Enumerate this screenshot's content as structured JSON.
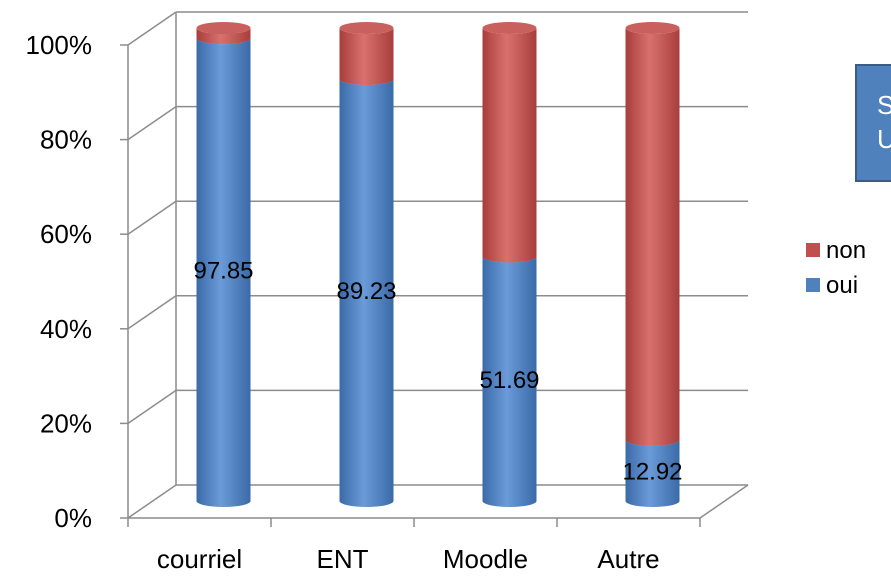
{
  "title_box": {
    "line1": "S",
    "line2": "U"
  },
  "colors": {
    "oui": "#4f81bd",
    "non": "#c0504d"
  },
  "chart_data": {
    "type": "bar",
    "stacked": true,
    "percent": true,
    "categories": [
      "courriel",
      "ENT",
      "Moodle",
      "Autre"
    ],
    "series": [
      {
        "name": "oui",
        "values": [
          97.85,
          89.23,
          51.69,
          12.92
        ]
      },
      {
        "name": "non",
        "values": [
          2.15,
          10.77,
          48.31,
          87.08
        ]
      }
    ],
    "data_labels": [
      "97.85",
      "89.23",
      "51.69",
      "12.92"
    ],
    "y_ticks": [
      "0%",
      "20%",
      "40%",
      "60%",
      "80%",
      "100%"
    ],
    "ylim": [
      0,
      100
    ],
    "legend": {
      "position": "right",
      "entries": [
        "non",
        "oui"
      ]
    },
    "grid": true
  }
}
